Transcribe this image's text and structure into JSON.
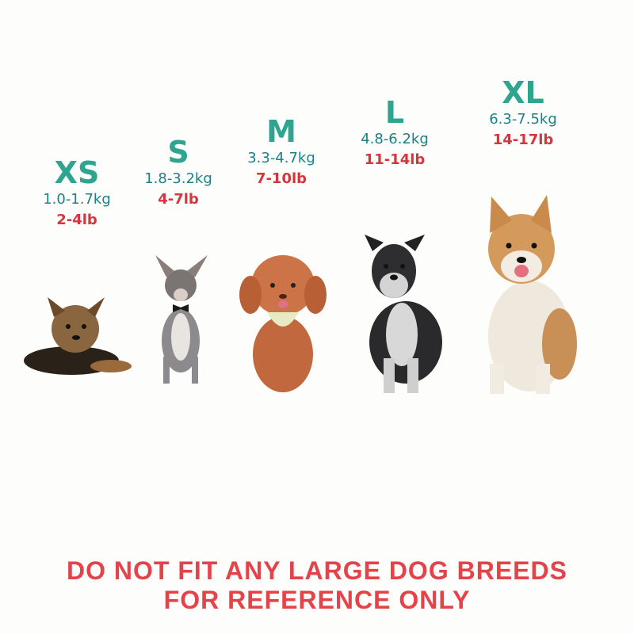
{
  "sizes": [
    {
      "label": "XS",
      "kg": "1.0-1.7kg",
      "lb": "2-4lb"
    },
    {
      "label": "S",
      "kg": "1.8-3.2kg",
      "lb": "4-7lb"
    },
    {
      "label": "M",
      "kg": "3.3-4.7kg",
      "lb": "7-10lb"
    },
    {
      "label": "L",
      "kg": "4.8-6.2kg",
      "lb": "11-14lb"
    },
    {
      "label": "XL",
      "kg": "6.3-7.5kg",
      "lb": "14-17lb"
    }
  ],
  "notice": {
    "line1": "DO NOT FIT ANY LARGE DOG BREEDS",
    "line2": "FOR REFERENCE ONLY"
  },
  "colors": {
    "size": "#2fa48f",
    "kg": "#1d8082",
    "lb": "#d5363d",
    "notice": "#e5434a"
  }
}
